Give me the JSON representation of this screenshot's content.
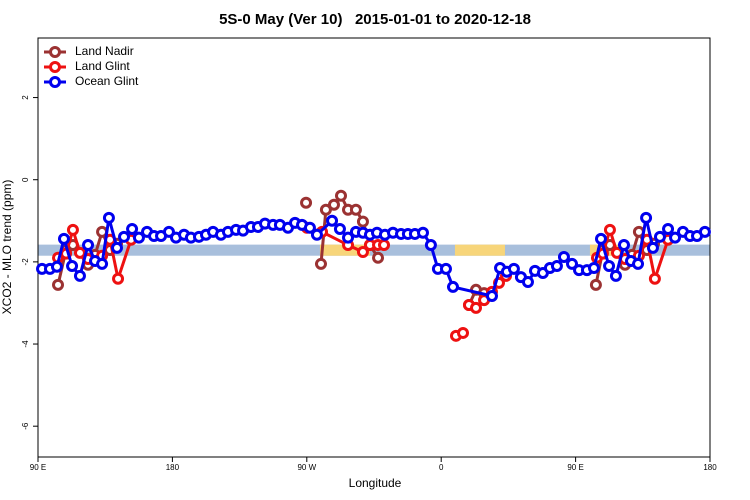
{
  "chart_data": {
    "type": "line",
    "title": "5S-0 May (Ver 10)   2015-01-01 to 2020-12-18",
    "x_label": "Longitude",
    "y_label": "XCO2 - MLO trend (ppm)",
    "xlim": [
      90,
      540
    ],
    "ylim": [
      -6.75,
      3.45
    ],
    "xticks": [
      {
        "value": 90,
        "label": "90 E"
      },
      180,
      {
        "value": 270,
        "label": "90 W"
      },
      {
        "value": 360,
        "label": "0"
      },
      {
        "value": 450,
        "label": "90 E"
      },
      {
        "value": 540,
        "label": "180"
      }
    ],
    "yticks": [
      -6,
      -4,
      -2,
      0,
      2
    ],
    "legend_position": "top-left",
    "band": {
      "ylim": [
        -1.85,
        -1.58
      ],
      "color": "#a8bfdc",
      "highlight_color": "#f7d57a",
      "highlights": [
        [
          278.8,
          312.3
        ],
        [
          369.2,
          402.7
        ],
        [
          459.6,
          479.7
        ]
      ]
    },
    "series": [
      {
        "name": "Land Nadir",
        "color": "#9b3232",
        "x": [
          103.4,
          108.8,
          113.4,
          123.5,
          128.2,
          132.9,
          138.2,
          142.9,
          null,
          269.5,
          null,
          279.5,
          282.8,
          288.2,
          292.9,
          297.6,
          302.9,
          307.6,
          312.3,
          317.7,
          null,
          378.6,
          383.3,
          388.7,
          null,
          463.6,
          468.3,
          473.0,
          483.1,
          487.8,
          492.4,
          497.8,
          502.5
        ],
        "values": [
          -2.56,
          -1.71,
          -1.59,
          -2.07,
          -1.83,
          -1.27,
          -1.71,
          -1.56,
          null,
          -0.56,
          null,
          -2.05,
          -0.73,
          -0.61,
          -0.39,
          -0.73,
          -0.73,
          -1.02,
          -1.59,
          -1.9,
          null,
          -3.05,
          -2.68,
          -2.76,
          null,
          -2.56,
          -1.71,
          -1.59,
          -2.07,
          -1.83,
          -1.27,
          -1.71,
          -1.56
        ]
      },
      {
        "name": "Land Glint",
        "color": "#ee1111",
        "x": [
          103.4,
          108.8,
          113.4,
          118.1,
          123.5,
          132.9,
          138.2,
          143.6,
          152.3,
          null,
          270.1,
          280.2,
          297.6,
          307.6,
          312.3,
          317.7,
          321.7,
          null,
          369.9,
          374.6,
          null,
          378.6,
          383.3,
          388.7,
          394.0,
          398.7,
          403.4,
          null,
          464.3,
          468.3,
          473.0,
          477.7,
          483.1,
          492.4,
          497.8,
          503.1,
          511.9
        ],
        "values": [
          -1.9,
          -1.8,
          -1.22,
          -1.78,
          -1.93,
          -1.85,
          -1.46,
          -2.41,
          -1.46,
          null,
          -1.17,
          -1.27,
          -1.59,
          -1.76,
          -1.59,
          -1.59,
          -1.59,
          null,
          -3.8,
          -3.73,
          null,
          -3.05,
          -3.12,
          -2.93,
          -2.73,
          -2.51,
          -2.34,
          null,
          -1.9,
          -1.8,
          -1.22,
          -1.78,
          -1.93,
          -1.85,
          -1.46,
          -2.41,
          -1.46
        ]
      },
      {
        "name": "Ocean Glint",
        "color": "#0000ee",
        "x": [
          92.7,
          98.0,
          102.7,
          107.4,
          112.8,
          118.1,
          123.5,
          128.2,
          132.9,
          137.5,
          142.9,
          147.6,
          153.0,
          157.6,
          163.0,
          167.7,
          172.4,
          177.7,
          182.4,
          187.8,
          192.4,
          197.8,
          202.5,
          207.2,
          212.5,
          217.2,
          222.6,
          227.3,
          232.6,
          237.3,
          242.0,
          247.4,
          252.0,
          257.4,
          262.1,
          266.8,
          272.1,
          276.8,
          286.9,
          292.2,
          297.6,
          302.9,
          307.6,
          312.3,
          317.0,
          322.3,
          327.7,
          333.1,
          337.7,
          342.4,
          347.8,
          353.1,
          357.8,
          363.2,
          367.9,
          394.0,
          399.4,
          404.0,
          408.7,
          413.4,
          418.1,
          422.8,
          428.1,
          432.8,
          437.5,
          442.2,
          447.6,
          452.3,
          457.6,
          462.3,
          467.0,
          472.4,
          477.0,
          482.4,
          487.1,
          491.8,
          497.2,
          501.8,
          506.5,
          511.9,
          516.6,
          521.9,
          526.6,
          531.3,
          536.6
        ],
        "values": [
          -2.17,
          -2.17,
          -2.12,
          -1.44,
          -2.1,
          -2.34,
          -1.59,
          -1.98,
          -2.05,
          -0.93,
          -1.66,
          -1.39,
          -1.2,
          -1.41,
          -1.27,
          -1.37,
          -1.37,
          -1.27,
          -1.41,
          -1.34,
          -1.41,
          -1.39,
          -1.34,
          -1.27,
          -1.34,
          -1.27,
          -1.22,
          -1.24,
          -1.15,
          -1.15,
          -1.07,
          -1.1,
          -1.1,
          -1.17,
          -1.05,
          -1.1,
          -1.17,
          -1.34,
          -1.0,
          -1.2,
          -1.41,
          -1.27,
          -1.29,
          -1.34,
          -1.29,
          -1.34,
          -1.29,
          -1.32,
          -1.32,
          -1.32,
          -1.29,
          -1.59,
          -2.17,
          -2.17,
          -2.61,
          -2.83,
          -2.15,
          -2.24,
          -2.17,
          -2.37,
          -2.49,
          -2.22,
          -2.27,
          -2.15,
          -2.1,
          -1.88,
          -2.05,
          -2.2,
          -2.2,
          -2.15,
          -1.44,
          -2.1,
          -2.34,
          -1.59,
          -1.98,
          -2.05,
          -0.93,
          -1.66,
          -1.39,
          -1.2,
          -1.41,
          -1.27,
          -1.37,
          -1.37,
          -1.27
        ]
      }
    ]
  }
}
